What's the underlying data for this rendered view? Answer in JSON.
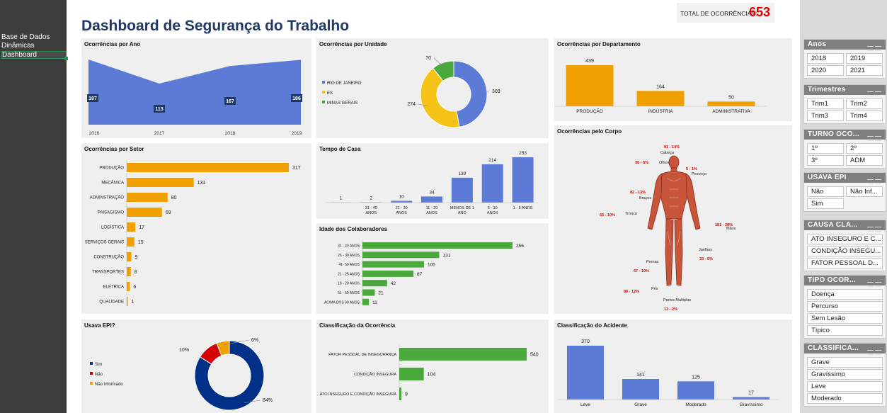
{
  "nav": {
    "items": [
      "Base de Dados",
      "Dinâmicas",
      "Dashboard"
    ]
  },
  "title": "Dashboard de Segurança do Trabalho",
  "total": {
    "label": "TOTAL DE OCORRÊNCIAS:",
    "value": "653"
  },
  "colors": {
    "blue": "#5b7bd6",
    "orange": "#f0a000",
    "green": "#4aa83c",
    "navy": "#003087",
    "red": "#e00000",
    "darkblue": "#1f3864"
  },
  "panels": {
    "ano": {
      "title": "Ocorrências por Ano"
    },
    "unidade": {
      "title": "Ocorrências por Unidade"
    },
    "departamento": {
      "title": "Ocorrências por Departamento"
    },
    "setor": {
      "title": "Ocorrências por Setor"
    },
    "tempo": {
      "title": "Tempo de Casa"
    },
    "idade": {
      "title": "Idade dos Colaboradores"
    },
    "corpo": {
      "title": "Ocorrências pelo Corpo"
    },
    "epi": {
      "title": "Usava EPI?"
    },
    "classif": {
      "title": "Classificação da Ocorrência"
    },
    "acidente": {
      "title": "Classificação do Acidente"
    }
  },
  "chart_data": [
    {
      "id": "ano",
      "type": "area",
      "x": [
        "2016",
        "2017",
        "2018",
        "2019"
      ],
      "values": [
        187,
        113,
        167,
        186
      ]
    },
    {
      "id": "unidade",
      "type": "pie",
      "categories": [
        "RIO DE JANEIRO",
        "ES",
        "MINAS GERAIS"
      ],
      "values": [
        309,
        274,
        70
      ],
      "colors": [
        "#5b7bd6",
        "#f5c316",
        "#4aa83c"
      ]
    },
    {
      "id": "departamento",
      "type": "bar",
      "categories": [
        "PRODUÇÃO",
        "INDÚSTRIA",
        "ADMINISTRATIVA"
      ],
      "values": [
        439,
        164,
        50
      ]
    },
    {
      "id": "setor",
      "type": "bar",
      "categories": [
        "PRODUÇÃO",
        "MECÂNICA",
        "ADMINSTRAÇÃO",
        "PAISAGISMO",
        "LOGÍSTICA",
        "SERVIÇOS GERAIS",
        "CONSTRUÇÃO",
        "TRANSPORTES",
        "ELÉTRICA",
        "QUALIDADE"
      ],
      "values": [
        317,
        131,
        80,
        69,
        17,
        15,
        9,
        8,
        6,
        1
      ]
    },
    {
      "id": "tempo",
      "type": "bar",
      "categories": [
        "",
        "31 - 40 ANOS",
        "21 - 30 ANOS",
        "11 - 20 ANOS",
        "MENOS DE 1 ANO",
        "6 - 10 ANOS",
        "1 - 5 ANOS"
      ],
      "values": [
        1,
        2,
        10,
        34,
        139,
        214,
        253
      ]
    },
    {
      "id": "idade",
      "type": "bar",
      "categories": [
        "31 - 40 ANOS",
        "26 - 30 ANOS",
        "41- 50 ANOS",
        "21 - 25 ANOS",
        "18 - 20 ANOS",
        "51 - 60 ANOS",
        "ACIMA DOS 60 ANOS"
      ],
      "values": [
        256,
        131,
        105,
        87,
        42,
        21,
        11
      ]
    },
    {
      "id": "epi",
      "type": "pie",
      "categories": [
        "Sim",
        "Não",
        "Não Informado"
      ],
      "values": [
        84,
        10,
        6
      ],
      "labels": [
        "84%",
        "10%",
        "6%"
      ],
      "colors": [
        "#003087",
        "#d40000",
        "#f0a000"
      ]
    },
    {
      "id": "classif",
      "type": "bar",
      "categories": [
        "FATOR PESSOAL DE INSEGURANÇA",
        "CONDIÇÃO INSEGURA",
        "ATO INSEGURO E CONDIÇÃO INSEGURA"
      ],
      "values": [
        540,
        104,
        9
      ]
    },
    {
      "id": "acidente",
      "type": "bar",
      "categories": [
        "Leve",
        "Grave",
        "Moderado",
        "Gravíssimo"
      ],
      "values": [
        370,
        141,
        125,
        17
      ]
    },
    {
      "id": "corpo",
      "type": "table",
      "parts": [
        {
          "name": "Cabeça",
          "value": "91 - 14%"
        },
        {
          "name": "Olhos",
          "value": "35 - 5%"
        },
        {
          "name": "Pescoço",
          "value": "5 - 1%"
        },
        {
          "name": "Braços",
          "value": "82 - 13%"
        },
        {
          "name": "Tronco",
          "value": "65 - 10%"
        },
        {
          "name": "Mãos",
          "value": "181 - 28%"
        },
        {
          "name": "Joelhos",
          "value": "33 - 5%"
        },
        {
          "name": "Pernas",
          "value": "67 - 10%"
        },
        {
          "name": "Pés",
          "value": "80 - 12%"
        },
        {
          "name": "Partes Multiplas",
          "value": "13 - 2%"
        }
      ]
    }
  ],
  "slicers": [
    {
      "title": "Anos",
      "items": [
        "2018",
        "2019",
        "2020",
        "2021"
      ]
    },
    {
      "title": "Trimestres",
      "items": [
        "Trim1",
        "Trim2",
        "Trim3",
        "Trim4"
      ]
    },
    {
      "title": "TURNO OCO...",
      "items": [
        "1º",
        "2º",
        "3º",
        "ADM"
      ]
    },
    {
      "title": "USAVA EPI",
      "items": [
        "Não",
        "Não Inf...",
        "Sim"
      ]
    },
    {
      "title": "CAUSA CLA...",
      "items": [
        "ATO INSEGURO E C...",
        "CONDIÇÃO INSEGU...",
        "FATOR PESSOAL D..."
      ]
    },
    {
      "title": "TIPO OCOR...",
      "items": [
        "Doença",
        "Percurso",
        "Sem Lesão",
        "Típico"
      ]
    },
    {
      "title": "CLASSIFICA...",
      "items": [
        "Grave",
        "Gravíssimo",
        "Leve",
        "Moderado"
      ]
    }
  ]
}
